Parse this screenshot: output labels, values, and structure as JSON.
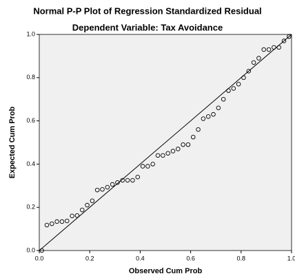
{
  "chart_data": {
    "type": "scatter",
    "title": "Normal P-P Plot of Regression Standardized Residual",
    "subtitle": "Dependent Variable: Tax Avoidance",
    "x_label": "Observed Cum Prob",
    "y_label": "Expected Cum Prob",
    "x": [
      0.01,
      0.03,
      0.05,
      0.07,
      0.09,
      0.11,
      0.13,
      0.15,
      0.17,
      0.19,
      0.21,
      0.23,
      0.25,
      0.27,
      0.29,
      0.31,
      0.33,
      0.35,
      0.37,
      0.39,
      0.41,
      0.43,
      0.45,
      0.47,
      0.49,
      0.51,
      0.53,
      0.55,
      0.57,
      0.59,
      0.61,
      0.63,
      0.65,
      0.67,
      0.69,
      0.71,
      0.73,
      0.75,
      0.77,
      0.79,
      0.81,
      0.83,
      0.85,
      0.87,
      0.89,
      0.91,
      0.93,
      0.95,
      0.97,
      0.99
    ],
    "y": [
      0.0,
      0.118,
      0.124,
      0.134,
      0.134,
      0.137,
      0.16,
      0.162,
      0.188,
      0.21,
      0.23,
      0.28,
      0.283,
      0.293,
      0.306,
      0.315,
      0.325,
      0.325,
      0.325,
      0.34,
      0.39,
      0.39,
      0.4,
      0.44,
      0.44,
      0.45,
      0.46,
      0.47,
      0.49,
      0.49,
      0.525,
      0.56,
      0.61,
      0.62,
      0.63,
      0.66,
      0.7,
      0.74,
      0.75,
      0.77,
      0.8,
      0.83,
      0.87,
      0.89,
      0.93,
      0.93,
      0.94,
      0.94,
      0.97,
      0.99
    ],
    "xlim": [
      0,
      1
    ],
    "ylim": [
      0,
      1
    ],
    "xticks": [
      {
        "value": 0,
        "label": "0.0"
      },
      0.2,
      0.4,
      0.6,
      0.8,
      {
        "value": 1,
        "label": "1.0"
      }
    ],
    "yticks": [
      {
        "value": 0,
        "label": "0.0"
      },
      0.2,
      0.4,
      0.6,
      0.8,
      {
        "value": 1,
        "label": "1.0"
      }
    ],
    "color": "#000000",
    "background": "#f0f0f0"
  }
}
